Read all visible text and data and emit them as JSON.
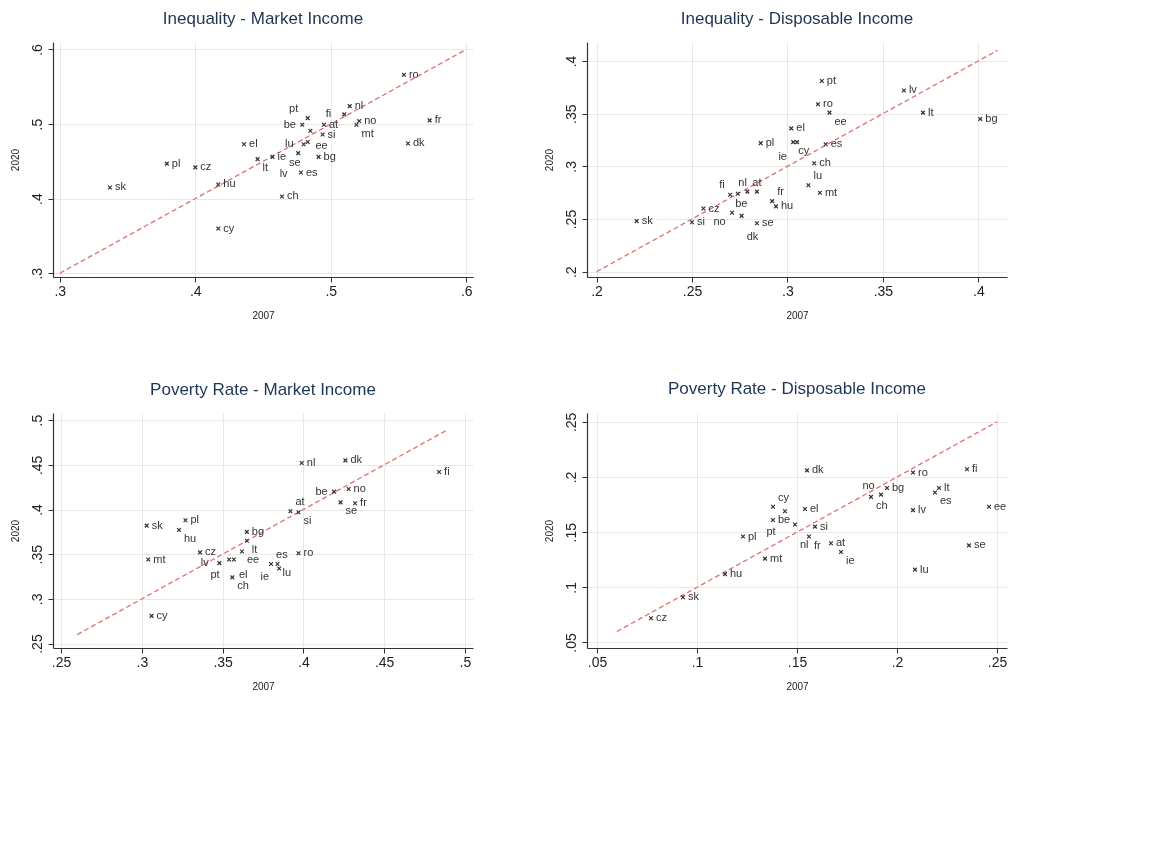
{
  "chart_data": [
    {
      "type": "scatter",
      "title": "Inequality - Market Income",
      "xlabel": "2007",
      "ylabel": "2020",
      "xlim": [
        0.295,
        0.605
      ],
      "ylim": [
        0.295,
        0.61
      ],
      "xticks": [
        {
          "value": 0.3,
          "label": ".3"
        },
        {
          "value": 0.4,
          "label": ".4"
        },
        {
          "value": 0.5,
          "label": ".5"
        },
        {
          "value": 0.6,
          "label": ".6"
        }
      ],
      "yticks": [
        {
          "value": 0.3,
          "label": ".3"
        },
        {
          "value": 0.4,
          "label": ".4"
        },
        {
          "value": 0.5,
          "label": ".5"
        },
        {
          "value": 0.6,
          "label": ".6"
        }
      ],
      "grid": true,
      "series": [
        {
          "type": "scatter",
          "marker": "cross",
          "color": "#333333",
          "x": [
            0.554,
            0.514,
            0.51,
            0.483,
            0.479,
            0.495,
            0.521,
            0.519,
            0.485,
            0.494,
            0.573,
            0.483,
            0.48,
            0.436,
            0.557,
            0.476,
            0.446,
            0.457,
            0.491,
            0.379,
            0.4,
            0.478,
            0.417,
            0.337,
            0.464,
            0.417
          ],
          "values": [
            0.566,
            0.524,
            0.513,
            0.508,
            0.499,
            0.499,
            0.504,
            0.499,
            0.491,
            0.486,
            0.505,
            0.476,
            0.473,
            0.473,
            0.474,
            0.461,
            0.453,
            0.456,
            0.456,
            0.447,
            0.442,
            0.435,
            0.419,
            0.415,
            0.403,
            0.36
          ]
        },
        {
          "type": "line",
          "color": "#e07070",
          "line_style": "dashed",
          "x": [
            0.3,
            0.6
          ],
          "values": [
            0.3,
            0.6
          ]
        }
      ],
      "annotations": [
        {
          "text": "ro",
          "x": 0.554,
          "y": 0.566
        },
        {
          "text": "nl",
          "x": 0.514,
          "y": 0.524
        },
        {
          "text": "fi",
          "x": 0.51,
          "y": 0.513
        },
        {
          "text": "pt",
          "x": 0.483,
          "y": 0.508
        },
        {
          "text": "be",
          "x": 0.479,
          "y": 0.499
        },
        {
          "text": "at",
          "x": 0.495,
          "y": 0.499
        },
        {
          "text": "no",
          "x": 0.521,
          "y": 0.504
        },
        {
          "text": "mt",
          "x": 0.519,
          "y": 0.499
        },
        {
          "text": "ee",
          "x": 0.485,
          "y": 0.491
        },
        {
          "text": "si",
          "x": 0.494,
          "y": 0.486
        },
        {
          "text": "fr",
          "x": 0.573,
          "y": 0.505
        },
        {
          "text": "se",
          "x": 0.483,
          "y": 0.476
        },
        {
          "text": "lu",
          "x": 0.48,
          "y": 0.473
        },
        {
          "text": "el",
          "x": 0.436,
          "y": 0.473
        },
        {
          "text": "dk",
          "x": 0.557,
          "y": 0.474
        },
        {
          "text": "lv",
          "x": 0.476,
          "y": 0.461
        },
        {
          "text": "lt",
          "x": 0.446,
          "y": 0.453
        },
        {
          "text": "ie",
          "x": 0.457,
          "y": 0.456
        },
        {
          "text": "bg",
          "x": 0.491,
          "y": 0.456
        },
        {
          "text": "pl",
          "x": 0.379,
          "y": 0.447
        },
        {
          "text": "cz",
          "x": 0.4,
          "y": 0.442
        },
        {
          "text": "es",
          "x": 0.478,
          "y": 0.435
        },
        {
          "text": "hu",
          "x": 0.417,
          "y": 0.419
        },
        {
          "text": "sk",
          "x": 0.337,
          "y": 0.415
        },
        {
          "text": "ch",
          "x": 0.464,
          "y": 0.403
        },
        {
          "text": "cy",
          "x": 0.417,
          "y": 0.36
        }
      ]
    },
    {
      "type": "scatter",
      "title": "Inequality - Disposable Income",
      "xlabel": "2007",
      "ylabel": "2020",
      "xlim": [
        0.195,
        0.415
      ],
      "ylim": [
        0.195,
        0.418
      ],
      "xticks": [
        {
          "value": 0.2,
          "label": ".2"
        },
        {
          "value": 0.25,
          "label": ".25"
        },
        {
          "value": 0.3,
          "label": ".3"
        },
        {
          "value": 0.35,
          "label": ".35"
        },
        {
          "value": 0.4,
          "label": ".4"
        }
      ],
      "yticks": [
        {
          "value": 0.2,
          "label": ".2"
        },
        {
          "value": 0.25,
          "label": ".25"
        },
        {
          "value": 0.3,
          "label": ".3"
        },
        {
          "value": 0.35,
          "label": ".35"
        },
        {
          "value": 0.4,
          "label": ".4"
        }
      ],
      "grid": true,
      "series": [
        {
          "type": "scatter",
          "marker": "cross",
          "color": "#333333",
          "x": [
            0.318,
            0.361,
            0.316,
            0.322,
            0.371,
            0.401,
            0.302,
            0.286,
            0.303,
            0.305,
            0.32,
            0.314,
            0.311,
            0.317,
            0.27,
            0.274,
            0.279,
            0.284,
            0.256,
            0.271,
            0.276,
            0.284,
            0.221,
            0.25,
            0.292,
            0.294
          ],
          "values": [
            0.381,
            0.372,
            0.359,
            0.351,
            0.351,
            0.345,
            0.336,
            0.322,
            0.323,
            0.323,
            0.321,
            0.303,
            0.282,
            0.275,
            0.273,
            0.274,
            0.276,
            0.276,
            0.26,
            0.256,
            0.253,
            0.246,
            0.248,
            0.247,
            0.267,
            0.262
          ]
        },
        {
          "type": "line",
          "color": "#e07070",
          "line_style": "dashed",
          "x": [
            0.2,
            0.41
          ],
          "values": [
            0.2,
            0.41
          ]
        }
      ],
      "annotations": [
        {
          "text": "pt",
          "x": 0.318,
          "y": 0.381
        },
        {
          "text": "lv",
          "x": 0.361,
          "y": 0.372
        },
        {
          "text": "ro",
          "x": 0.316,
          "y": 0.359
        },
        {
          "text": "ee",
          "x": 0.322,
          "y": 0.351
        },
        {
          "text": "lt",
          "x": 0.371,
          "y": 0.351
        },
        {
          "text": "bg",
          "x": 0.401,
          "y": 0.345
        },
        {
          "text": "el",
          "x": 0.302,
          "y": 0.336
        },
        {
          "text": "pl",
          "x": 0.286,
          "y": 0.322
        },
        {
          "text": "cy",
          "x": 0.303,
          "y": 0.323
        },
        {
          "text": "ie",
          "x": 0.305,
          "y": 0.323
        },
        {
          "text": "es",
          "x": 0.32,
          "y": 0.321
        },
        {
          "text": "ch",
          "x": 0.314,
          "y": 0.303
        },
        {
          "text": "lu",
          "x": 0.311,
          "y": 0.282
        },
        {
          "text": "mt",
          "x": 0.317,
          "y": 0.275
        },
        {
          "text": "be",
          "x": 0.27,
          "y": 0.273
        },
        {
          "text": "fi",
          "x": 0.274,
          "y": 0.274
        },
        {
          "text": "at",
          "x": 0.279,
          "y": 0.276
        },
        {
          "text": "nl",
          "x": 0.284,
          "y": 0.276
        },
        {
          "text": "cz",
          "x": 0.256,
          "y": 0.26
        },
        {
          "text": "no",
          "x": 0.271,
          "y": 0.256
        },
        {
          "text": "dk",
          "x": 0.276,
          "y": 0.253
        },
        {
          "text": "se",
          "x": 0.284,
          "y": 0.246
        },
        {
          "text": "sk",
          "x": 0.221,
          "y": 0.248
        },
        {
          "text": "si",
          "x": 0.25,
          "y": 0.247
        },
        {
          "text": "fr",
          "x": 0.292,
          "y": 0.267
        },
        {
          "text": "hu",
          "x": 0.294,
          "y": 0.262
        }
      ]
    },
    {
      "type": "scatter",
      "title": "Poverty Rate - Market Income",
      "xlabel": "2007",
      "ylabel": "2020",
      "xlim": [
        0.245,
        0.505
      ],
      "ylim": [
        0.245,
        0.508
      ],
      "xticks": [
        {
          "value": 0.25,
          "label": ".25"
        },
        {
          "value": 0.3,
          "label": ".3"
        },
        {
          "value": 0.35,
          "label": ".35"
        },
        {
          "value": 0.4,
          "label": ".4"
        },
        {
          "value": 0.45,
          "label": ".45"
        },
        {
          "value": 0.5,
          "label": ".5"
        }
      ],
      "yticks": [
        {
          "value": 0.25,
          "label": ".25"
        },
        {
          "value": 0.3,
          "label": ".3"
        },
        {
          "value": 0.35,
          "label": ".35"
        },
        {
          "value": 0.4,
          "label": ".4"
        },
        {
          "value": 0.45,
          "label": ".45"
        },
        {
          "value": 0.5,
          "label": ".5"
        }
      ],
      "grid": true,
      "series": [
        {
          "type": "scatter",
          "marker": "cross",
          "color": "#333333",
          "x": [
            0.484,
            0.426,
            0.399,
            0.428,
            0.419,
            0.423,
            0.432,
            0.392,
            0.397,
            0.327,
            0.303,
            0.323,
            0.365,
            0.365,
            0.336,
            0.362,
            0.397,
            0.304,
            0.354,
            0.357,
            0.348,
            0.38,
            0.384,
            0.385,
            0.356,
            0.306
          ],
          "values": [
            0.442,
            0.455,
            0.452,
            0.423,
            0.42,
            0.408,
            0.407,
            0.398,
            0.397,
            0.388,
            0.382,
            0.377,
            0.375,
            0.365,
            0.352,
            0.353,
            0.351,
            0.344,
            0.344,
            0.344,
            0.34,
            0.339,
            0.339,
            0.334,
            0.324,
            0.281
          ]
        },
        {
          "type": "line",
          "color": "#e07070",
          "line_style": "dashed",
          "x": [
            0.26,
            0.489
          ],
          "values": [
            0.26,
            0.489
          ]
        }
      ],
      "annotations": [
        {
          "text": "fi",
          "x": 0.484,
          "y": 0.442
        },
        {
          "text": "dk",
          "x": 0.426,
          "y": 0.455
        },
        {
          "text": "nl",
          "x": 0.399,
          "y": 0.452
        },
        {
          "text": "no",
          "x": 0.428,
          "y": 0.423
        },
        {
          "text": "be",
          "x": 0.419,
          "y": 0.42
        },
        {
          "text": "se",
          "x": 0.423,
          "y": 0.408
        },
        {
          "text": "fr",
          "x": 0.432,
          "y": 0.407
        },
        {
          "text": "at",
          "x": 0.392,
          "y": 0.398
        },
        {
          "text": "si",
          "x": 0.397,
          "y": 0.397
        },
        {
          "text": "pl",
          "x": 0.327,
          "y": 0.388
        },
        {
          "text": "sk",
          "x": 0.303,
          "y": 0.382
        },
        {
          "text": "hu",
          "x": 0.323,
          "y": 0.377
        },
        {
          "text": "bg",
          "x": 0.365,
          "y": 0.375
        },
        {
          "text": "lt",
          "x": 0.365,
          "y": 0.365
        },
        {
          "text": "cz",
          "x": 0.336,
          "y": 0.352
        },
        {
          "text": "ee",
          "x": 0.362,
          "y": 0.353
        },
        {
          "text": "ro",
          "x": 0.397,
          "y": 0.351
        },
        {
          "text": "mt",
          "x": 0.304,
          "y": 0.344
        },
        {
          "text": "pt",
          "x": 0.354,
          "y": 0.344
        },
        {
          "text": "el",
          "x": 0.357,
          "y": 0.344
        },
        {
          "text": "lv",
          "x": 0.348,
          "y": 0.34
        },
        {
          "text": "es",
          "x": 0.38,
          "y": 0.339
        },
        {
          "text": "lu",
          "x": 0.384,
          "y": 0.339
        },
        {
          "text": "ie",
          "x": 0.385,
          "y": 0.334
        },
        {
          "text": "ch",
          "x": 0.356,
          "y": 0.324
        },
        {
          "text": "cy",
          "x": 0.306,
          "y": 0.281
        }
      ]
    },
    {
      "type": "scatter",
      "title": "Poverty Rate - Disposable Income",
      "xlabel": "2007",
      "ylabel": "2020",
      "xlim": [
        0.045,
        0.255
      ],
      "ylim": [
        0.045,
        0.258
      ],
      "xticks": [
        {
          "value": 0.05,
          "label": ".05"
        },
        {
          "value": 0.1,
          "label": ".1"
        },
        {
          "value": 0.15,
          "label": ".15"
        },
        {
          "value": 0.2,
          "label": ".2"
        },
        {
          "value": 0.25,
          "label": ".25"
        }
      ],
      "yticks": [
        {
          "value": 0.05,
          "label": ".05"
        },
        {
          "value": 0.1,
          "label": ".1"
        },
        {
          "value": 0.15,
          "label": ".15"
        },
        {
          "value": 0.2,
          "label": ".2"
        },
        {
          "value": 0.25,
          "label": ".25"
        }
      ],
      "grid": true,
      "series": [
        {
          "type": "scatter",
          "marker": "cross",
          "color": "#333333",
          "x": [
            0.155,
            0.208,
            0.235,
            0.195,
            0.221,
            0.219,
            0.187,
            0.192,
            0.246,
            0.138,
            0.144,
            0.154,
            0.208,
            0.138,
            0.149,
            0.159,
            0.123,
            0.156,
            0.167,
            0.172,
            0.236,
            0.134,
            0.209,
            0.114,
            0.093,
            0.077
          ],
          "values": [
            0.206,
            0.204,
            0.207,
            0.19,
            0.19,
            0.186,
            0.182,
            0.184,
            0.173,
            0.173,
            0.169,
            0.171,
            0.17,
            0.161,
            0.157,
            0.155,
            0.146,
            0.146,
            0.14,
            0.132,
            0.138,
            0.126,
            0.116,
            0.112,
            0.091,
            0.072
          ]
        },
        {
          "type": "line",
          "color": "#e07070",
          "line_style": "dashed",
          "x": [
            0.06,
            0.25
          ],
          "values": [
            0.06,
            0.25
          ]
        }
      ],
      "annotations": [
        {
          "text": "dk",
          "x": 0.155,
          "y": 0.206
        },
        {
          "text": "ro",
          "x": 0.208,
          "y": 0.204
        },
        {
          "text": "fi",
          "x": 0.235,
          "y": 0.207
        },
        {
          "text": "bg",
          "x": 0.195,
          "y": 0.19
        },
        {
          "text": "lt",
          "x": 0.221,
          "y": 0.19
        },
        {
          "text": "es",
          "x": 0.219,
          "y": 0.186
        },
        {
          "text": "ch",
          "x": 0.187,
          "y": 0.182
        },
        {
          "text": "no",
          "x": 0.192,
          "y": 0.184
        },
        {
          "text": "ee",
          "x": 0.246,
          "y": 0.173
        },
        {
          "text": "cy",
          "x": 0.138,
          "y": 0.173
        },
        {
          "text": "pt",
          "x": 0.144,
          "y": 0.169
        },
        {
          "text": "el",
          "x": 0.154,
          "y": 0.171
        },
        {
          "text": "lv",
          "x": 0.208,
          "y": 0.17
        },
        {
          "text": "be",
          "x": 0.138,
          "y": 0.161
        },
        {
          "text": "nl",
          "x": 0.149,
          "y": 0.157
        },
        {
          "text": "si",
          "x": 0.159,
          "y": 0.155
        },
        {
          "text": "pl",
          "x": 0.123,
          "y": 0.146
        },
        {
          "text": "fr",
          "x": 0.156,
          "y": 0.146
        },
        {
          "text": "at",
          "x": 0.167,
          "y": 0.14
        },
        {
          "text": "ie",
          "x": 0.172,
          "y": 0.132
        },
        {
          "text": "se",
          "x": 0.236,
          "y": 0.138
        },
        {
          "text": "mt",
          "x": 0.134,
          "y": 0.126
        },
        {
          "text": "lu",
          "x": 0.209,
          "y": 0.116
        },
        {
          "text": "hu",
          "x": 0.114,
          "y": 0.112
        },
        {
          "text": "sk",
          "x": 0.093,
          "y": 0.091
        },
        {
          "text": "cz",
          "x": 0.077,
          "y": 0.072
        }
      ]
    }
  ]
}
